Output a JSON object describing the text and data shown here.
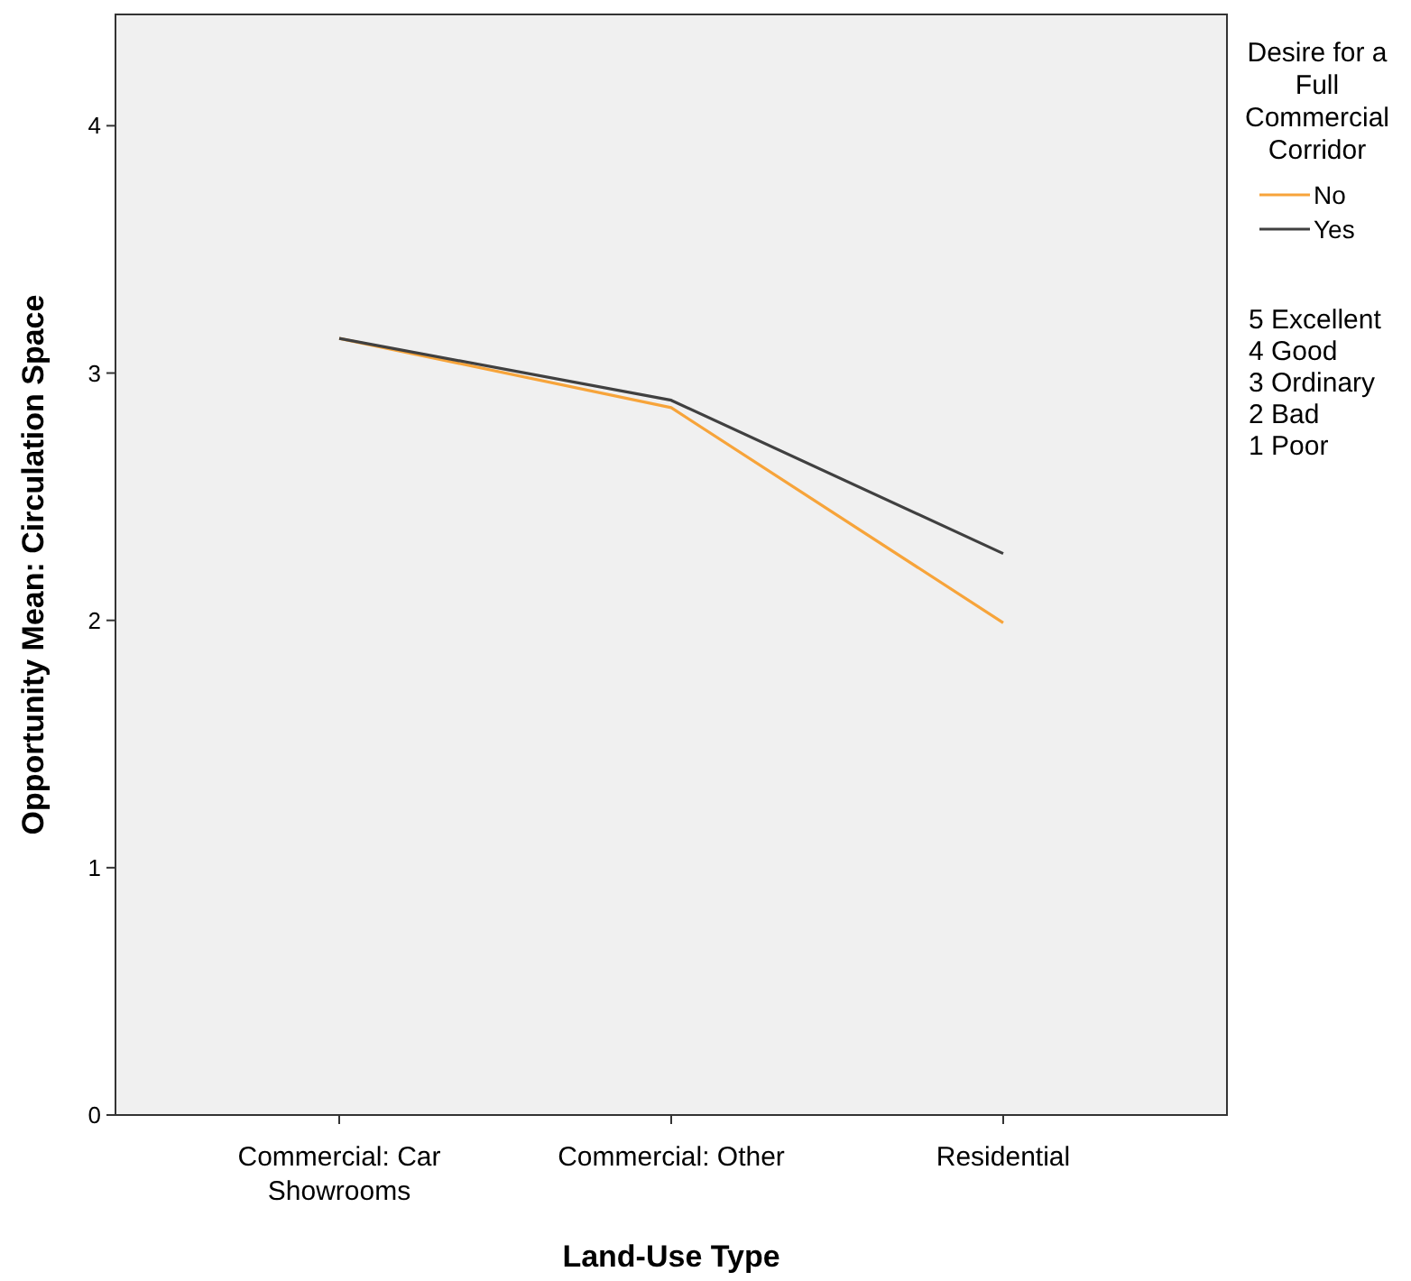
{
  "chart_data": {
    "type": "line",
    "xlabel": "Land-Use Type",
    "ylabel": "Opportunity Mean: Circulation Space",
    "legend_title": "Desire for a Full Commercial Corridor",
    "categories": [
      "Commercial: Car Showrooms",
      "Commercial: Other",
      "Residential"
    ],
    "series": [
      {
        "name": "No",
        "color": "#f7a43a",
        "values": [
          3.14,
          2.86,
          1.99
        ]
      },
      {
        "name": "Yes",
        "color": "#404040",
        "values": [
          3.14,
          2.89,
          2.27
        ]
      }
    ],
    "ylim": [
      0,
      4.45
    ],
    "yticks": [
      0,
      1,
      2,
      3,
      4
    ],
    "grid": false,
    "legend": "right",
    "marker": "none",
    "line_style": "solid",
    "annotations": [
      "5 Excellent",
      "4 Good",
      "3 Ordinary",
      "2 Bad",
      "1 Poor"
    ]
  }
}
